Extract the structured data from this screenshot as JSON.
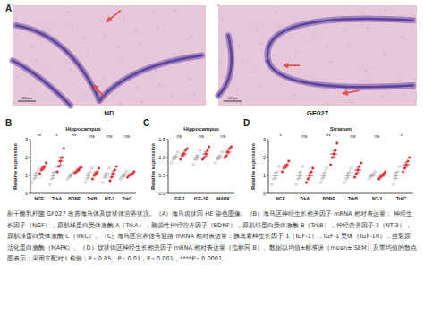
{
  "figure": {
    "panel_labels": [
      "A",
      "B",
      "C",
      "D"
    ],
    "images": [
      {
        "label": "ND",
        "scale_bar": "100 μm"
      },
      {
        "label": "GF027",
        "scale_bar": "100 μm"
      }
    ],
    "caption": "副干酪乳杆菌 GF027 改善海马体及纹状体营养状况。（A）海马齿状回 HE 染色图像。（B）海马区神经生长相关因子 mRNA 相对表达量： 神经生长因子（NGF），原肌球蛋白受体激酶 A（TrkA），脑源性神经营养因子（BDNF），原肌球蛋白受体激酶 B（TrkB），神经营养因子 3（NT-3），原肌球蛋白受体激酶 C（TrkC）。（C）海马区营养信号通路 mRNA 相对表达量：胰岛素样生长因子 1（IGF-1），IGF-1 受体（IGF-1R），丝裂原活化蛋白激酶（MAPK）。（D）纹状体区神经生长相关因子 mRNA 相对表达量（指标同 B）。数据以均值±标准误（mean± SEM）及带均值的散点图表示；采用非配对 t 检验；P＜0.05，P＜0.01，P＜0.001，****P＜0.0001。"
  },
  "chart_data": [
    {
      "type": "dot",
      "title": "Hippocampus",
      "ylabel": "Relative expression",
      "categories": [
        "NGF",
        "TrkA",
        "BDNF",
        "TrkB",
        "NT-3",
        "TrkC"
      ],
      "ylim": [
        0,
        3
      ],
      "yticks": [
        0,
        1,
        2,
        3
      ],
      "significance": [
        "**",
        "*",
        "**",
        "ns",
        "ns",
        "ns"
      ],
      "series": [
        {
          "color": "#9e9e9e",
          "marker": "circle_open",
          "values": [
            1.0,
            1.0,
            1.0,
            1.0,
            1.0,
            1.0
          ],
          "errors": [
            0.14,
            0.17,
            0.07,
            0.14,
            0.13,
            0.07
          ],
          "points": [
            [
              0.6,
              0.8,
              1.0,
              1.2,
              1.4
            ],
            [
              0.5,
              0.8,
              1.0,
              1.2,
              1.5
            ],
            [
              0.8,
              0.9,
              1.0,
              1.1,
              1.2
            ],
            [
              0.6,
              0.8,
              1.0,
              1.2,
              1.4
            ],
            [
              0.6,
              0.9,
              1.0,
              1.1,
              1.4
            ],
            [
              0.8,
              0.9,
              1.0,
              1.1,
              1.2
            ]
          ]
        },
        {
          "color": "#e0303a",
          "marker": "circle",
          "values": [
            1.4,
            1.8,
            1.3,
            1.1,
            1.1,
            1.05
          ],
          "errors": [
            0.1,
            0.22,
            0.06,
            0.1,
            0.14,
            0.05
          ],
          "points": [
            [
              1.1,
              1.3,
              1.4,
              1.5,
              1.7
            ],
            [
              1.2,
              1.5,
              1.8,
              2.0,
              2.5
            ],
            [
              1.15,
              1.2,
              1.3,
              1.4,
              1.45
            ],
            [
              0.8,
              1.0,
              1.1,
              1.2,
              1.4
            ],
            [
              0.7,
              0.9,
              1.1,
              1.3,
              1.5
            ],
            [
              0.9,
              1.0,
              1.05,
              1.1,
              1.2
            ]
          ]
        }
      ]
    },
    {
      "type": "dot",
      "title": "Hippocampus",
      "ylabel": "Relative expression",
      "categories": [
        "IGF-1",
        "IGF-1R",
        "MAPK"
      ],
      "ylim": [
        0,
        1.5
      ],
      "yticks": [
        {
          "value": 0,
          "label": "0.0"
        },
        {
          "value": 0.5,
          "label": "0.5"
        },
        {
          "value": 1,
          "label": "1.0"
        },
        {
          "value": 1.5,
          "label": "1.5"
        }
      ],
      "significance": [
        "ns",
        "ns",
        "ns"
      ],
      "series": [
        {
          "color": "#9e9e9e",
          "marker": "circle_open",
          "values": [
            1.0,
            1.0,
            1.0
          ],
          "errors": [
            0.05,
            0.06,
            0.05
          ],
          "points": [
            [
              0.85,
              0.95,
              1.0,
              1.05,
              1.15
            ],
            [
              0.8,
              0.95,
              1.0,
              1.05,
              1.2
            ],
            [
              0.85,
              0.95,
              1.0,
              1.05,
              1.15
            ]
          ]
        },
        {
          "color": "#e0303a",
          "marker": "circle",
          "values": [
            1.1,
            1.1,
            1.15
          ],
          "errors": [
            0.05,
            0.06,
            0.05
          ],
          "points": [
            [
              0.95,
              1.05,
              1.1,
              1.2,
              1.25
            ],
            [
              0.95,
              1.0,
              1.1,
              1.2,
              1.3
            ],
            [
              1.0,
              1.05,
              1.15,
              1.25,
              1.3
            ]
          ]
        }
      ]
    },
    {
      "type": "dot",
      "title": "Striatum",
      "ylabel": "Relative expression",
      "categories": [
        "NGF",
        "TrkA",
        "BDNF",
        "TrkB",
        "NT-3",
        "TrkC"
      ],
      "ylim": [
        0,
        3
      ],
      "yticks": [
        0,
        1,
        2,
        3
      ],
      "significance": [
        "*",
        "ns",
        "**",
        "ns",
        "ns",
        "*"
      ],
      "series": [
        {
          "color": "#9e9e9e",
          "marker": "circle_open",
          "values": [
            1.0,
            1.0,
            1.0,
            1.0,
            1.0,
            1.0
          ],
          "errors": [
            0.17,
            0.17,
            0.14,
            0.14,
            0.07,
            0.17
          ],
          "points": [
            [
              0.5,
              0.8,
              1.0,
              1.2,
              1.5
            ],
            [
              0.5,
              0.8,
              1.0,
              1.2,
              1.5
            ],
            [
              0.6,
              0.8,
              1.0,
              1.2,
              1.4
            ],
            [
              0.6,
              0.8,
              1.0,
              1.2,
              1.4
            ],
            [
              0.8,
              0.9,
              1.0,
              1.1,
              1.2
            ],
            [
              0.5,
              0.8,
              1.0,
              1.2,
              1.5
            ]
          ]
        },
        {
          "color": "#e0303a",
          "marker": "circle",
          "values": [
            1.5,
            1.0,
            2.2,
            1.3,
            1.0,
            1.6
          ],
          "errors": [
            0.1,
            0.14,
            0.2,
            0.14,
            0.07,
            0.14
          ],
          "points": [
            [
              1.2,
              1.4,
              1.5,
              1.6,
              1.8
            ],
            [
              0.6,
              0.8,
              1.0,
              1.2,
              1.4
            ],
            [
              1.6,
              2.0,
              2.2,
              2.4,
              2.8
            ],
            [
              0.9,
              1.1,
              1.3,
              1.5,
              1.7
            ],
            [
              0.8,
              0.9,
              1.0,
              1.1,
              1.2
            ],
            [
              1.2,
              1.4,
              1.6,
              1.8,
              2.0
            ]
          ]
        }
      ]
    }
  ]
}
